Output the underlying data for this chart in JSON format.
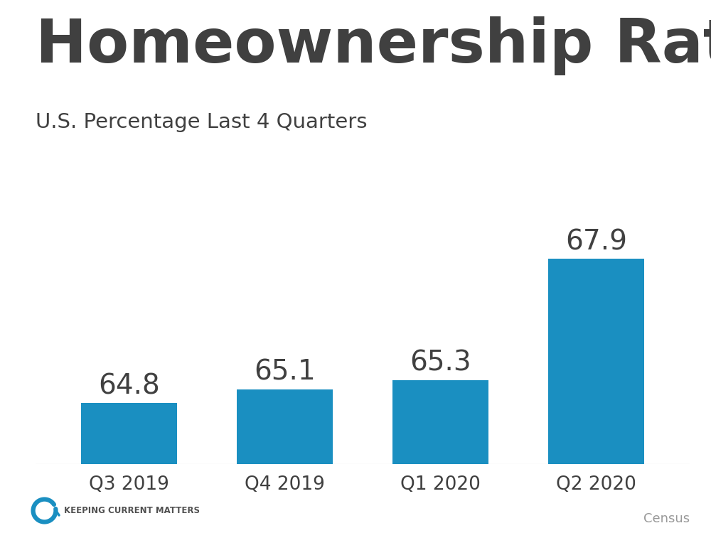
{
  "title": "Homeownership Rates",
  "subtitle": "U.S. Percentage Last 4 Quarters",
  "categories": [
    "Q3 2019",
    "Q4 2019",
    "Q1 2020",
    "Q2 2020"
  ],
  "values": [
    64.8,
    65.1,
    65.3,
    67.9
  ],
  "bar_color": "#1a8fc1",
  "background_color": "#ffffff",
  "title_color": "#404040",
  "subtitle_color": "#404040",
  "label_color": "#404040",
  "tick_color": "#404040",
  "source_text": "Census",
  "source_color": "#999999",
  "brand_text": "Keeping Current Matters",
  "brand_color": "#505050",
  "brand_icon_color": "#1a8fc1",
  "ylim_min": 63.5,
  "ylim_max": 69.8,
  "value_fontsize": 28,
  "title_fontsize": 62,
  "subtitle_fontsize": 21,
  "tick_fontsize": 19,
  "bar_width": 0.62
}
